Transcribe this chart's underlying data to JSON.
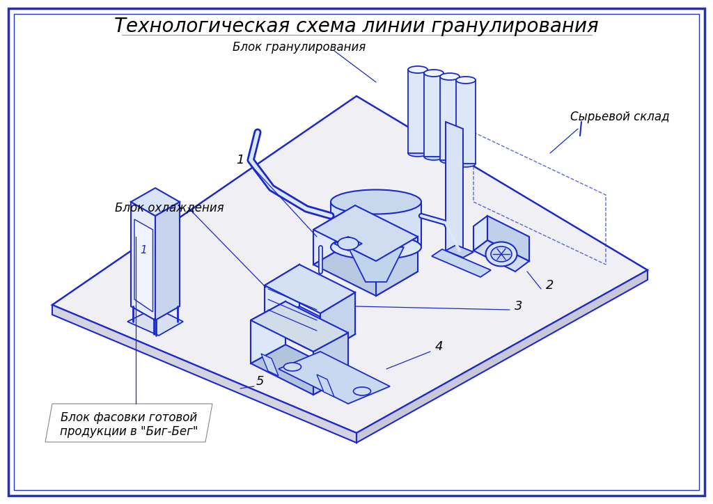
{
  "title": "Технологическая схема линии гранулирования",
  "bg_color": "#ffffff",
  "border_color": "#2233bb",
  "line_color": "#1a28bb",
  "draw_color": "#1a28cc",
  "labels": {
    "granulation_block": "Блок гранулирования",
    "raw_storage": "Сырьевой склад",
    "cooling_block": "Блок охлаждения",
    "packaging_block": "Блок фасовки готовой\nпродукции в \"Биг-Бег\""
  },
  "title_fontsize": 20,
  "label_fontsize": 12,
  "number_fontsize": 13,
  "platform_color": "#eeeeee",
  "platform_shadow": "#d8d8e8"
}
